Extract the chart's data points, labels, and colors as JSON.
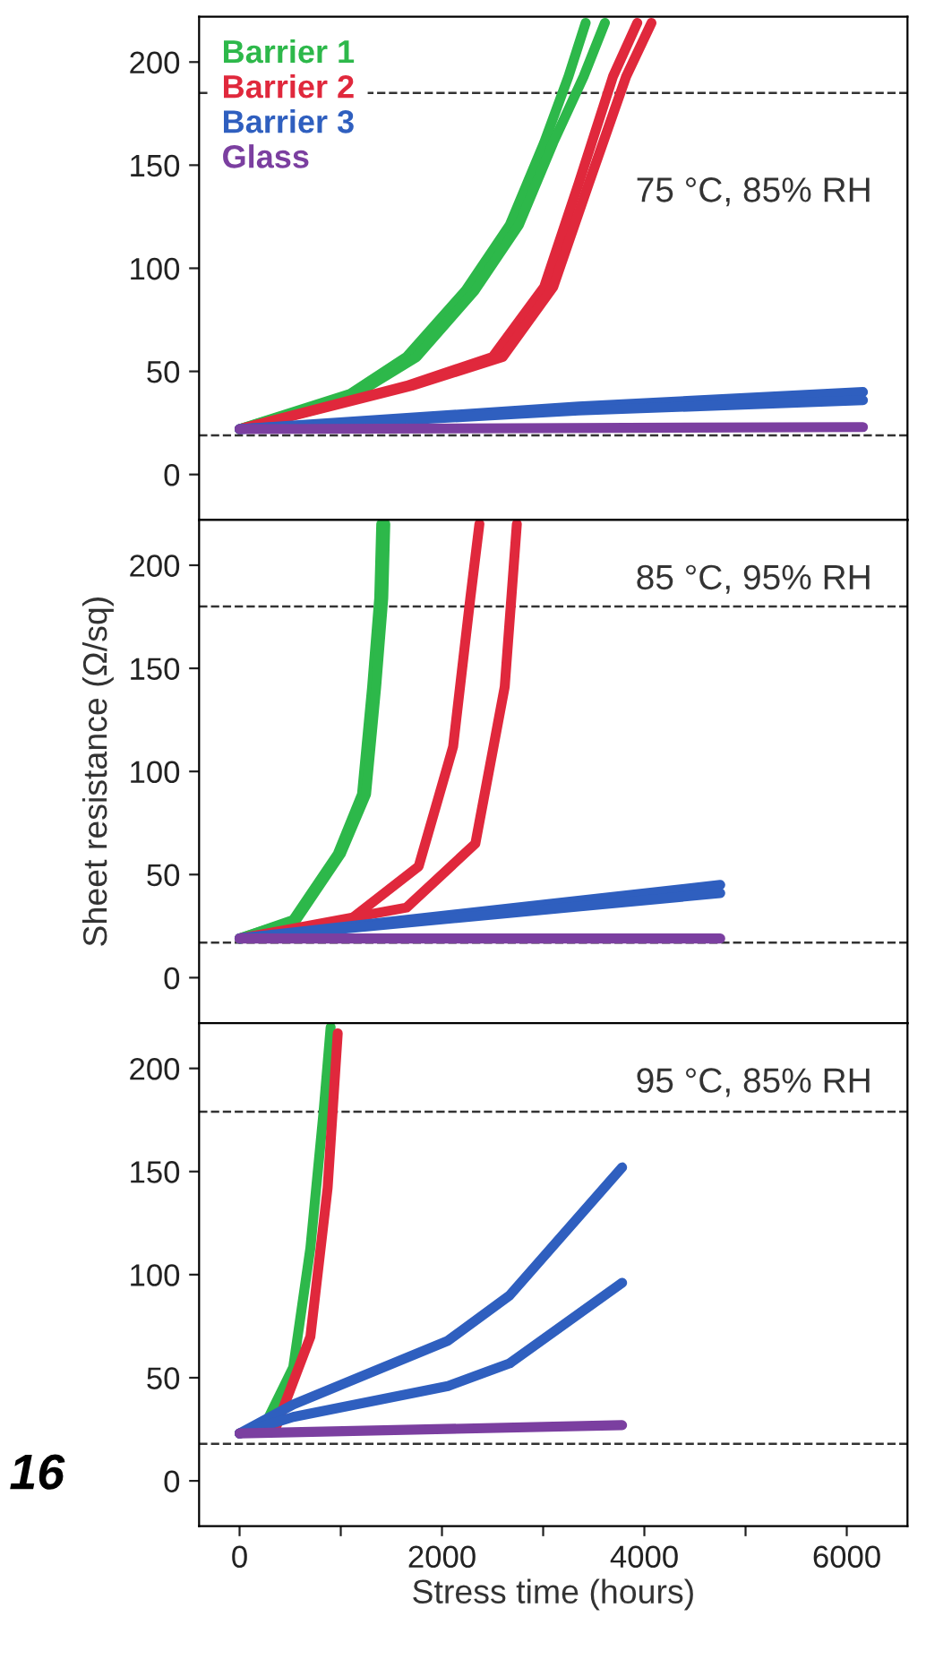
{
  "chart_data": [
    {
      "type": "line",
      "legend": "top left",
      "tick_labels": "y",
      "annotations": [
        "75 °C, 85% RH"
      ],
      "xlim": [
        -400,
        6600
      ],
      "ylim": [
        -22,
        222
      ],
      "yticks": [
        0,
        50,
        100,
        150,
        200
      ],
      "ref_lines": [
        {
          "axis": "y",
          "value": 185,
          "line_style": "dashed"
        },
        {
          "axis": "y",
          "value": 19,
          "line_style": "dashed"
        }
      ],
      "series": [
        {
          "name": "Barrier 1",
          "color": "#2db84a",
          "x": [
            0,
            1090,
            1650,
            2230,
            2670,
            3010,
            3250,
            3420
          ],
          "values": [
            22,
            39,
            57,
            89,
            121,
            161,
            193,
            219
          ]
        },
        {
          "color": "#2db84a",
          "x": [
            0,
            1150,
            1750,
            2320,
            2760,
            3100,
            3400,
            3610
          ],
          "values": [
            22,
            39,
            57,
            89,
            121,
            161,
            193,
            219
          ]
        },
        {
          "name": "Barrier 2",
          "color": "#e0283c",
          "x": [
            0,
            1650,
            2500,
            3010,
            3350,
            3690,
            3930
          ],
          "values": [
            22,
            43,
            57,
            91,
            141,
            193,
            219
          ]
        },
        {
          "color": "#e0283c",
          "x": [
            0,
            1700,
            2600,
            3100,
            3450,
            3820,
            4070
          ],
          "values": [
            22,
            43,
            57,
            91,
            141,
            193,
            219
          ]
        },
        {
          "name": "Barrier 3",
          "color": "#2f5fbf",
          "x": [
            0,
            3350,
            6160
          ],
          "values": [
            22,
            33,
            40
          ]
        },
        {
          "color": "#2f5fbf",
          "x": [
            0,
            3350,
            6160
          ],
          "values": [
            22,
            31,
            36
          ]
        },
        {
          "name": "Glass",
          "color": "#7b3fa0",
          "x": [
            0,
            6160
          ],
          "values": [
            22,
            23
          ]
        }
      ]
    },
    {
      "type": "line",
      "ylabel": "Sheet resistance (Ω/sq)",
      "tick_labels": "y",
      "annotations": [
        "85 °C, 95% RH"
      ],
      "xlim": [
        -400,
        6600
      ],
      "ylim": [
        -22,
        222
      ],
      "yticks": [
        0,
        50,
        100,
        150,
        200
      ],
      "ref_lines": [
        {
          "axis": "y",
          "value": 180,
          "line_style": "dashed"
        },
        {
          "axis": "y",
          "value": 17,
          "line_style": "dashed"
        }
      ],
      "series": [
        {
          "color": "#2db84a",
          "x": [
            0,
            530,
            970,
            1210,
            1310,
            1380,
            1400
          ],
          "values": [
            19,
            28,
            60,
            89,
            141,
            184,
            220
          ]
        },
        {
          "color": "#2db84a",
          "x": [
            0,
            560,
            1000,
            1250,
            1350,
            1420,
            1440
          ],
          "values": [
            19,
            28,
            60,
            89,
            141,
            184,
            220
          ]
        },
        {
          "color": "#e0283c",
          "x": [
            0,
            1090,
            1770,
            2110,
            2280,
            2370
          ],
          "values": [
            19,
            28,
            54,
            112,
            184,
            220
          ]
        },
        {
          "color": "#e0283c",
          "x": [
            0,
            1650,
            2330,
            2620,
            2740
          ],
          "values": [
            19,
            34,
            65,
            141,
            220
          ]
        },
        {
          "color": "#2f5fbf",
          "x": [
            0,
            4750
          ],
          "values": [
            19,
            45
          ]
        },
        {
          "color": "#2f5fbf",
          "x": [
            0,
            4750
          ],
          "values": [
            19,
            41
          ]
        },
        {
          "color": "#7b3fa0",
          "x": [
            0,
            4750
          ],
          "values": [
            19,
            19
          ]
        }
      ]
    },
    {
      "type": "line",
      "xlabel": "Stress time (hours)",
      "annotations": [
        "95 °C, 85% RH",
        "16"
      ],
      "xlim": [
        -400,
        6600
      ],
      "ylim": [
        -22,
        222
      ],
      "xticks": [
        0,
        {
          "value": 1000,
          "label": null
        },
        2000,
        {
          "value": 3000,
          "label": null
        },
        4000,
        {
          "value": 5000,
          "label": null
        },
        6000
      ],
      "yticks": [
        0,
        50,
        100,
        150,
        200
      ],
      "ref_lines": [
        {
          "axis": "y",
          "value": 179,
          "line_style": "dashed"
        },
        {
          "axis": "y",
          "value": 18,
          "line_style": "dashed"
        }
      ],
      "series": [
        {
          "color": "#2db84a",
          "x": [
            0,
            240,
            530,
            700,
            830,
            900
          ],
          "values": [
            23,
            26,
            55,
            113,
            179,
            220
          ]
        },
        {
          "color": "#e0283c",
          "x": [
            0,
            360,
            700,
            870,
            970
          ],
          "values": [
            23,
            26,
            70,
            142,
            217
          ]
        },
        {
          "color": "#2f5fbf",
          "x": [
            0,
            530,
            2060,
            2670,
            3780
          ],
          "values": [
            23,
            37,
            68,
            90,
            152
          ]
        },
        {
          "color": "#2f5fbf",
          "x": [
            0,
            530,
            2060,
            2670,
            3780
          ],
          "values": [
            23,
            31,
            46,
            57,
            96
          ]
        },
        {
          "color": "#7b3fa0",
          "x": [
            0,
            3780
          ],
          "values": [
            23,
            27
          ]
        }
      ]
    }
  ]
}
